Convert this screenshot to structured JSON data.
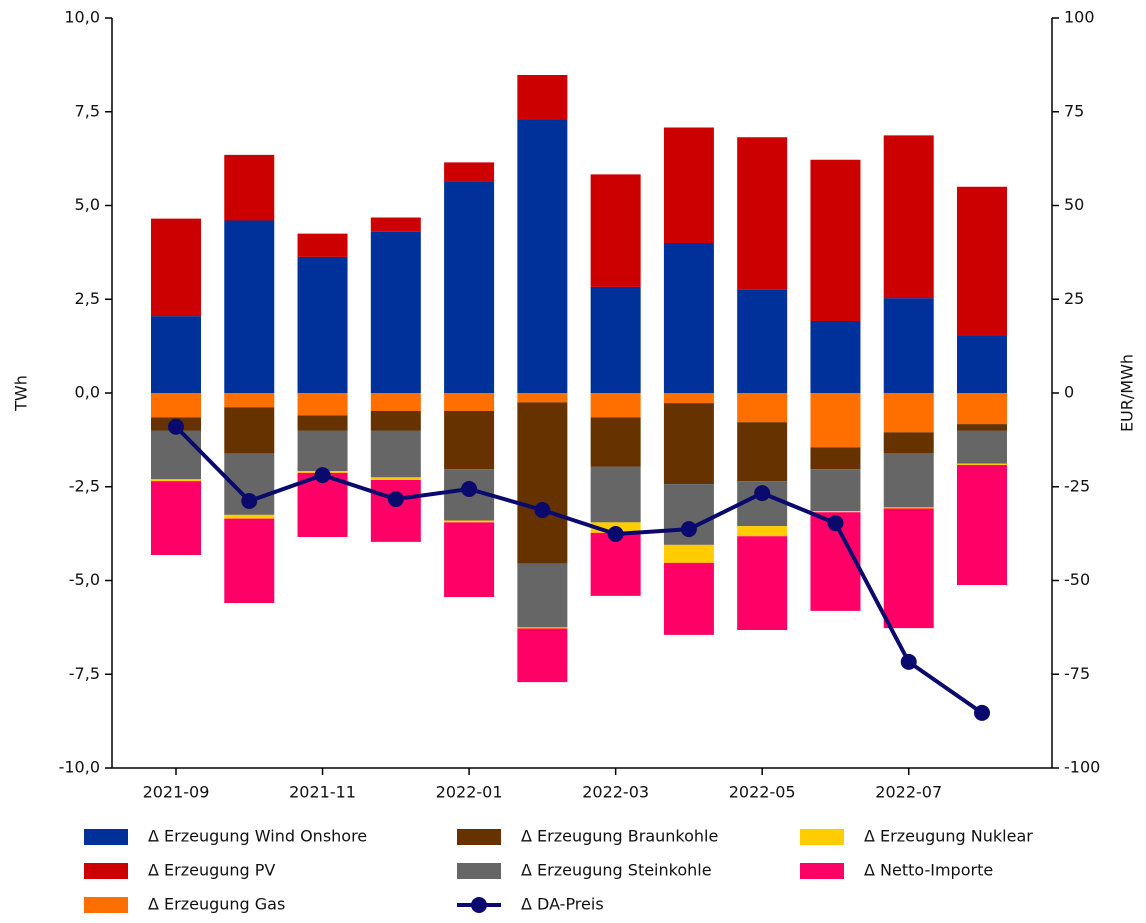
{
  "chart_data": {
    "type": "bar",
    "y_label": "TWh",
    "y2_label": "EUR/MWh",
    "categories": [
      "2021-09",
      null,
      "2021-11",
      null,
      "2022-01",
      null,
      "2022-03",
      null,
      "2022-05",
      null,
      "2022-07",
      null
    ],
    "ylim": [
      -10,
      10
    ],
    "yticks": [
      {
        "value": -10,
        "label": "-10,0"
      },
      {
        "value": -7.5,
        "label": "-7,5"
      },
      {
        "value": -5,
        "label": "-5,0"
      },
      {
        "value": -2.5,
        "label": "-2,5"
      },
      {
        "value": 0,
        "label": "0,0"
      },
      {
        "value": 2.5,
        "label": "2,5"
      },
      {
        "value": 5,
        "label": "5,0"
      },
      {
        "value": 7.5,
        "label": "7,5"
      },
      {
        "value": 10,
        "label": "10,0"
      }
    ],
    "y2lim": [
      -100,
      100
    ],
    "y2ticks": [
      -100,
      -75,
      -50,
      -25,
      0,
      25,
      50,
      75,
      100
    ],
    "grid": false,
    "series": [
      {
        "name": "Δ Erzeugung Wind Onshore",
        "color": "#00309a",
        "values": [
          2.05,
          4.6,
          3.63,
          4.3,
          5.65,
          7.28,
          2.83,
          4.0,
          2.75,
          1.92,
          2.53,
          1.52
        ]
      },
      {
        "name": "Δ Erzeugung PV",
        "color": "#cc0000",
        "values": [
          2.6,
          1.75,
          0.62,
          0.38,
          0.5,
          1.2,
          3.0,
          3.08,
          4.07,
          4.3,
          4.34,
          3.98
        ]
      },
      {
        "name": "Δ Erzeugung Gas",
        "color": "#ff6f00",
        "values": [
          -0.65,
          -0.38,
          -0.6,
          -0.48,
          -0.48,
          -0.25,
          -0.65,
          -0.27,
          -0.78,
          -1.45,
          -1.05,
          -0.83
        ]
      },
      {
        "name": "Δ Erzeugung Braunkohle",
        "color": "#663300",
        "values": [
          -0.35,
          -1.24,
          -0.4,
          -0.52,
          -1.55,
          -4.3,
          -1.32,
          -2.16,
          -1.57,
          -0.58,
          -0.55,
          -0.17
        ]
      },
      {
        "name": "Δ Erzeugung Steinkohle",
        "color": "#666666",
        "values": [
          -1.3,
          -1.63,
          -1.08,
          -1.25,
          -1.37,
          -1.7,
          -1.48,
          -1.62,
          -1.2,
          -1.12,
          -1.45,
          -0.88
        ]
      },
      {
        "name": "Δ Erzeugung Nuklear",
        "color": "#ffcc00",
        "values": [
          -0.05,
          -0.1,
          -0.05,
          -0.07,
          -0.05,
          -0.03,
          -0.28,
          -0.48,
          -0.27,
          -0.03,
          -0.03,
          -0.04
        ]
      },
      {
        "name": "Δ Netto-Importe",
        "color": "#ff0066",
        "values": [
          -1.97,
          -2.25,
          -1.71,
          -1.65,
          -1.99,
          -1.43,
          -1.68,
          -1.92,
          -2.5,
          -2.63,
          -3.19,
          -3.2
        ]
      },
      {
        "name": "Δ DA-Preis",
        "color": "#0a0a6e",
        "type": "line",
        "axis": "y2",
        "values": [
          -9,
          -28.8,
          -21.9,
          -28.3,
          -25.6,
          -31.2,
          -37.6,
          -36.3,
          -26.7,
          -34.7,
          -71.7,
          -85.3
        ]
      }
    ]
  }
}
